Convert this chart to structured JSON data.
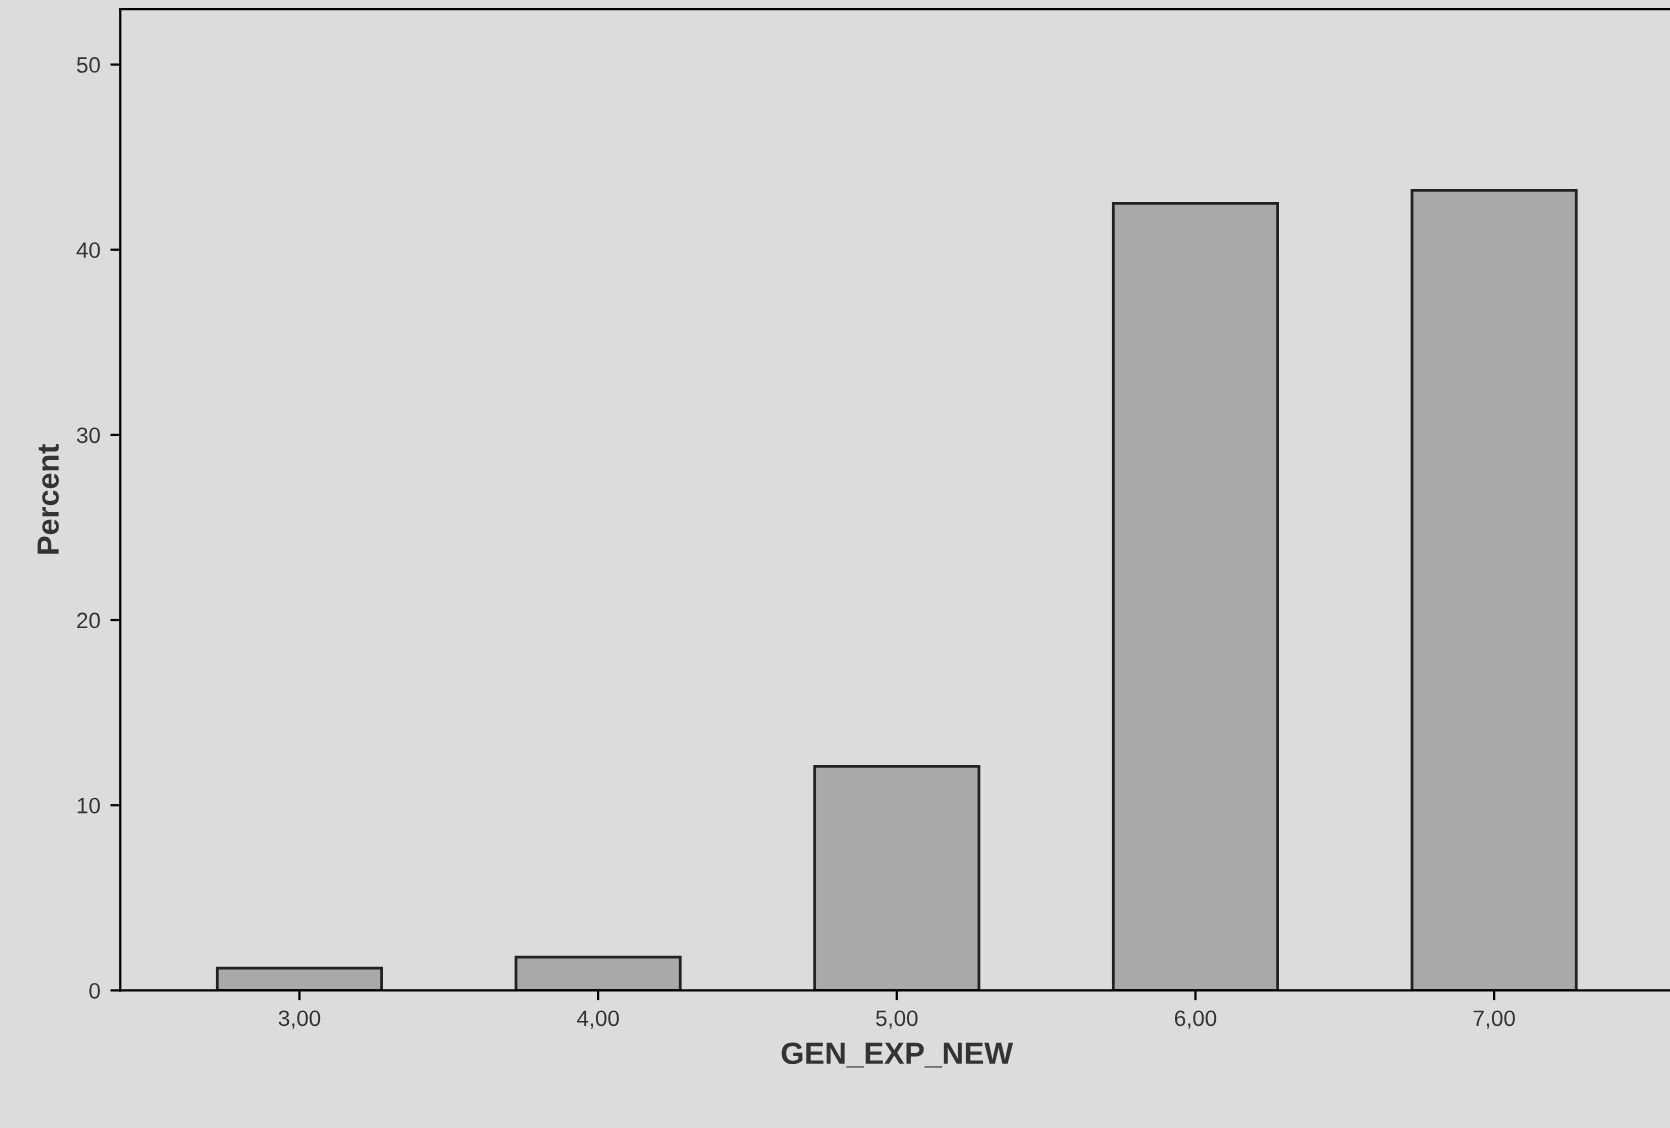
{
  "chart_data": {
    "type": "bar",
    "xlabel": "GEN_EXP_NEW",
    "ylabel": "Percent",
    "categories": [
      "3,00",
      "4,00",
      "5,00",
      "6,00",
      "7,00"
    ],
    "values": [
      1.2,
      1.8,
      12.1,
      42.5,
      43.2
    ],
    "color": "#a9a9a9",
    "ylim": [
      0,
      53
    ],
    "yticks": [
      0,
      10,
      20,
      30,
      40,
      50
    ],
    "grid": false
  }
}
